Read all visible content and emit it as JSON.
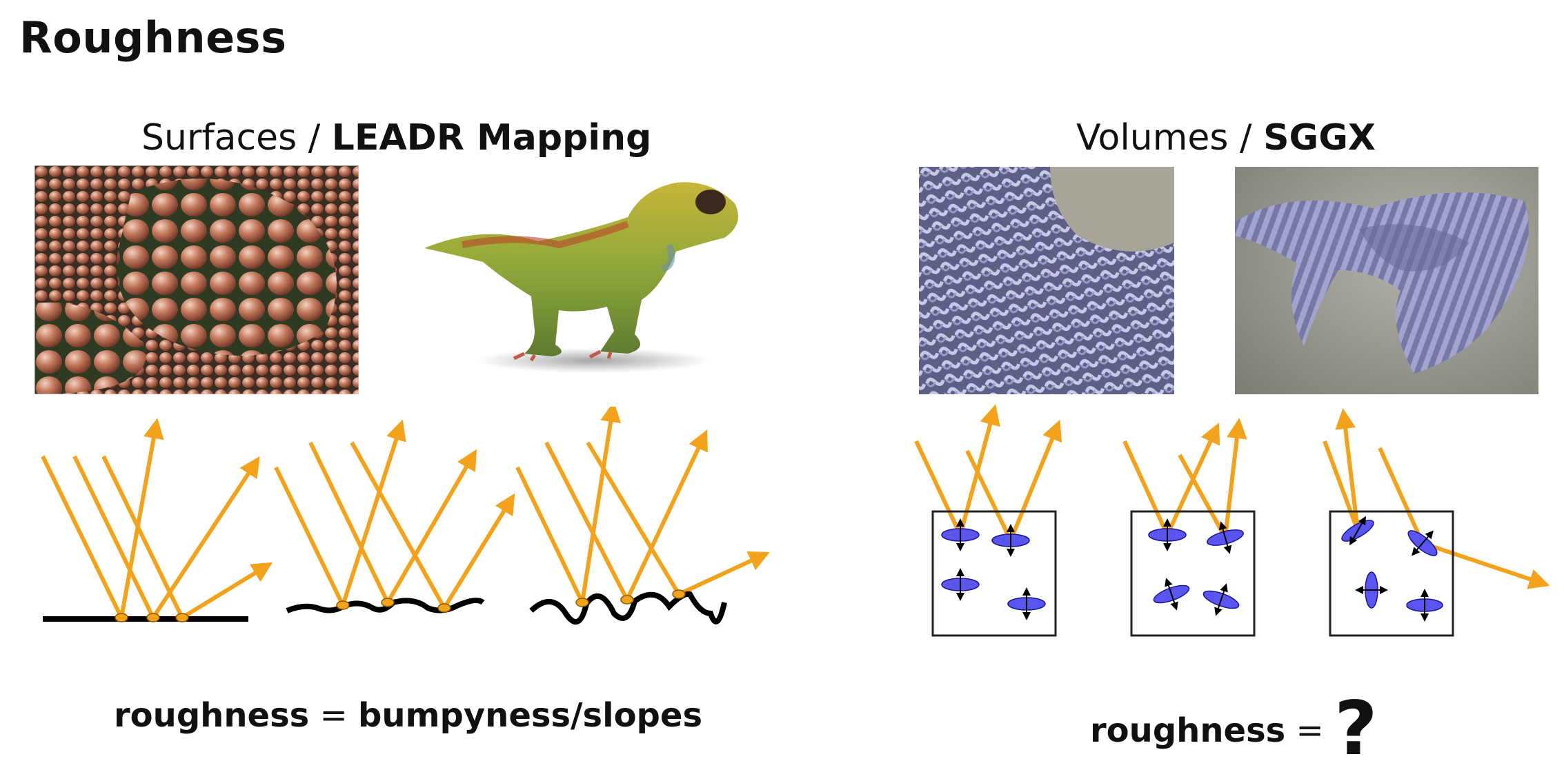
{
  "title": "Roughness",
  "left": {
    "heading_a": "Surfaces",
    "heading_sep": " / ",
    "heading_b": "LEADR Mapping",
    "equation_lhs": "roughness",
    "equation_op": " = ",
    "equation_rhs": "bumpyness/slopes"
  },
  "right": {
    "heading_a": "Volumes",
    "heading_sep": " / ",
    "heading_b": "SGGX",
    "equation_lhs": "roughness",
    "equation_op": " = ",
    "equation_rhs": "?"
  },
  "colors": {
    "ray": "#F2A31B",
    "surface": "#000000",
    "ellipsoid": "#5B55F0",
    "scale_red": "#B5674E",
    "dino_green": "#9AB03A",
    "knit_blue": "#8C8CC0",
    "floor_gray": "#9B9B92"
  },
  "icons": [
    "scales-photo",
    "dinosaur-photo",
    "knit-closeup-photo",
    "scarf-photo",
    "microflake-box"
  ]
}
